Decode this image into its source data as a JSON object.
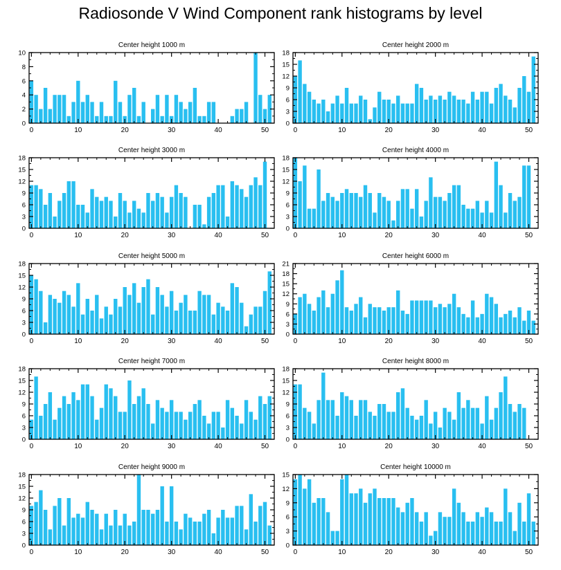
{
  "title": "Radiosonde V Wind Component rank histograms by level",
  "colors": {
    "bar": "#29bff0",
    "axis": "#000000"
  },
  "chart_data": [
    {
      "type": "bar",
      "title": "Center height 1000 m",
      "ylim": [
        0,
        10
      ],
      "yticks": [
        0,
        2,
        4,
        6,
        8,
        10
      ],
      "xlim": [
        -0.5,
        52
      ],
      "xticks": [
        0,
        10,
        20,
        30,
        40,
        50
      ],
      "values": [
        6,
        4,
        2,
        5,
        2,
        4,
        4,
        4,
        1,
        3,
        6,
        3,
        4,
        3,
        1,
        3,
        1,
        1,
        6,
        3,
        1,
        4,
        5,
        1,
        3,
        0,
        2,
        4,
        1,
        4,
        1,
        4,
        3,
        2,
        3,
        5,
        1,
        1,
        3,
        3,
        0,
        0,
        0,
        1,
        2,
        2,
        3,
        0,
        10,
        4,
        2,
        4
      ]
    },
    {
      "type": "bar",
      "title": "Center height 2000 m",
      "ylim": [
        0,
        18
      ],
      "yticks": [
        0,
        3,
        6,
        9,
        12,
        15,
        18
      ],
      "xlim": [
        -0.5,
        52
      ],
      "xticks": [
        0,
        10,
        20,
        30,
        40,
        50
      ],
      "values": [
        12,
        16,
        10,
        8,
        6,
        5,
        6,
        3,
        5,
        7,
        5,
        9,
        5,
        5,
        7,
        6,
        1,
        4,
        8,
        6,
        6,
        5,
        7,
        5,
        5,
        5,
        10,
        9,
        6,
        7,
        6,
        7,
        6,
        8,
        7,
        6,
        6,
        5,
        8,
        6,
        8,
        8,
        5,
        9,
        10,
        7,
        6,
        4,
        9,
        12,
        8,
        17
      ]
    },
    {
      "type": "bar",
      "title": "Center height 3000 m",
      "ylim": [
        0,
        18
      ],
      "yticks": [
        0,
        3,
        6,
        9,
        12,
        15,
        18
      ],
      "xlim": [
        -0.5,
        52
      ],
      "xticks": [
        0,
        10,
        20,
        30,
        40,
        50
      ],
      "values": [
        11,
        11,
        10,
        6,
        9,
        3,
        7,
        9,
        12,
        12,
        6,
        6,
        4,
        10,
        8,
        7,
        8,
        7,
        3,
        9,
        7,
        4,
        7,
        5,
        4,
        9,
        7,
        9,
        8,
        4,
        8,
        11,
        9,
        8,
        0,
        6,
        6,
        1,
        8,
        9,
        11,
        11,
        3,
        12,
        11,
        10,
        8,
        11,
        13,
        11,
        17,
        0
      ]
    },
    {
      "type": "bar",
      "title": "Center height 4000 m",
      "ylim": [
        0,
        18
      ],
      "yticks": [
        0,
        3,
        6,
        9,
        12,
        15,
        18
      ],
      "xlim": [
        -0.5,
        52
      ],
      "xticks": [
        0,
        10,
        20,
        30,
        40,
        50
      ],
      "values": [
        18,
        12,
        16,
        5,
        5,
        15,
        7,
        9,
        8,
        7,
        9,
        10,
        9,
        9,
        8,
        11,
        9,
        4,
        9,
        8,
        7,
        2,
        7,
        10,
        10,
        5,
        10,
        3,
        7,
        13,
        8,
        8,
        7,
        9,
        11,
        11,
        6,
        5,
        5,
        7,
        4,
        7,
        4,
        17,
        11,
        4,
        9,
        7,
        8,
        16,
        16,
        0
      ]
    },
    {
      "type": "bar",
      "title": "Center height 5000 m",
      "ylim": [
        0,
        18
      ],
      "yticks": [
        0,
        3,
        6,
        9,
        12,
        15,
        18
      ],
      "xlim": [
        -0.5,
        52
      ],
      "xticks": [
        0,
        10,
        20,
        30,
        40,
        50
      ],
      "values": [
        15,
        14,
        11,
        3,
        10,
        9,
        8,
        11,
        10,
        7,
        13,
        5,
        9,
        6,
        10,
        4,
        7,
        5,
        9,
        7,
        12,
        10,
        13,
        8,
        12,
        14,
        5,
        12,
        10,
        7,
        11,
        6,
        8,
        10,
        6,
        6,
        11,
        10,
        10,
        5,
        8,
        7,
        6,
        13,
        12,
        8,
        2,
        5,
        7,
        7,
        11,
        16
      ]
    },
    {
      "type": "bar",
      "title": "Center height 6000 m",
      "ylim": [
        0,
        21
      ],
      "yticks": [
        0,
        3,
        6,
        9,
        12,
        15,
        18,
        21
      ],
      "xlim": [
        -0.5,
        52
      ],
      "xticks": [
        0,
        10,
        20,
        30,
        40,
        50
      ],
      "values": [
        6,
        11,
        12,
        9,
        7,
        11,
        13,
        8,
        12,
        16,
        19,
        8,
        7,
        9,
        11,
        5,
        9,
        8,
        8,
        7,
        8,
        8,
        13,
        7,
        6,
        10,
        10,
        10,
        10,
        10,
        8,
        9,
        8,
        9,
        12,
        8,
        6,
        5,
        10,
        5,
        6,
        12,
        11,
        9,
        5,
        6,
        7,
        5,
        8,
        4,
        7,
        4
      ]
    },
    {
      "type": "bar",
      "title": "Center height 7000 m",
      "ylim": [
        0,
        18
      ],
      "yticks": [
        0,
        3,
        6,
        9,
        12,
        15,
        18
      ],
      "xlim": [
        -0.5,
        52
      ],
      "xticks": [
        0,
        10,
        20,
        30,
        40,
        50
      ],
      "values": [
        5,
        16,
        6,
        9,
        12,
        5,
        8,
        11,
        9,
        12,
        10,
        14,
        14,
        11,
        5,
        8,
        14,
        13,
        11,
        7,
        7,
        15,
        9,
        11,
        13,
        9,
        4,
        10,
        8,
        7,
        10,
        7,
        7,
        5,
        7,
        9,
        10,
        6,
        4,
        7,
        7,
        3,
        10,
        8,
        6,
        4,
        10,
        7,
        5,
        11,
        9,
        11
      ]
    },
    {
      "type": "bar",
      "title": "Center height 8000 m",
      "ylim": [
        0,
        18
      ],
      "yticks": [
        0,
        3,
        6,
        9,
        12,
        15,
        18
      ],
      "xlim": [
        -0.5,
        52
      ],
      "xticks": [
        0,
        10,
        20,
        30,
        40,
        50
      ],
      "values": [
        14,
        14,
        8,
        7,
        4,
        10,
        17,
        10,
        10,
        6,
        12,
        11,
        10,
        6,
        10,
        10,
        7,
        6,
        9,
        9,
        7,
        7,
        12,
        13,
        8,
        6,
        5,
        6,
        10,
        4,
        7,
        3,
        8,
        7,
        5,
        12,
        8,
        10,
        8,
        8,
        4,
        11,
        5,
        8,
        12,
        16,
        9,
        7,
        9,
        8,
        0,
        0
      ]
    },
    {
      "type": "bar",
      "title": "Center height 9000 m",
      "ylim": [
        0,
        18
      ],
      "yticks": [
        0,
        3,
        6,
        9,
        12,
        15,
        18
      ],
      "xlim": [
        -0.5,
        52
      ],
      "xticks": [
        0,
        10,
        20,
        30,
        40,
        50
      ],
      "values": [
        10,
        11,
        14,
        9,
        4,
        10,
        12,
        5,
        12,
        7,
        8,
        7,
        11,
        9,
        8,
        4,
        8,
        5,
        9,
        5,
        8,
        5,
        6,
        18,
        9,
        9,
        8,
        9,
        15,
        6,
        15,
        6,
        4,
        8,
        7,
        6,
        6,
        8,
        9,
        3,
        7,
        9,
        7,
        7,
        10,
        10,
        4,
        13,
        6,
        10,
        11,
        5
      ]
    },
    {
      "type": "bar",
      "title": "Center height 10000 m",
      "ylim": [
        0,
        15
      ],
      "yticks": [
        0,
        3,
        6,
        9,
        12,
        15
      ],
      "xlim": [
        -0.5,
        52
      ],
      "xticks": [
        0,
        10,
        20,
        30,
        40,
        50
      ],
      "values": [
        14,
        15,
        12,
        14,
        9,
        10,
        10,
        7,
        3,
        3,
        14,
        15,
        11,
        11,
        12,
        9,
        11,
        12,
        10,
        10,
        10,
        10,
        8,
        7,
        9,
        10,
        7,
        5,
        7,
        2,
        3,
        7,
        6,
        6,
        12,
        9,
        7,
        5,
        5,
        7,
        6,
        8,
        7,
        5,
        5,
        12,
        7,
        3,
        9,
        5,
        11,
        5
      ]
    }
  ]
}
